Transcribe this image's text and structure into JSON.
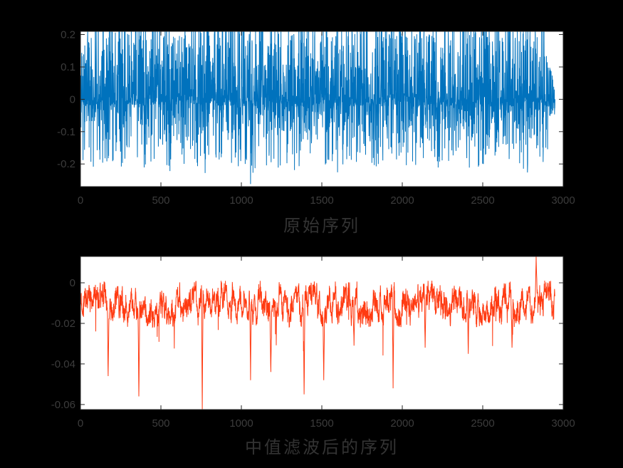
{
  "figure": {
    "background": "#000000",
    "plot_background": "#ffffff",
    "axis_color": "#262626",
    "tick_label_color": "#3c3c3c",
    "title_color": "#333333"
  },
  "chart_data": [
    {
      "type": "line",
      "name": "original-sequence",
      "title": "原始序列",
      "line_color": "#0072BD",
      "x_tick_labels": [
        "0",
        "500",
        "1000",
        "1500",
        "2000",
        "2500",
        "3000"
      ],
      "y_tick_labels": [
        "0.2",
        "0.1",
        "0",
        "-0.1",
        "-0.2"
      ],
      "xlim": [
        0,
        3000
      ],
      "ylim": [
        -0.27,
        0.21
      ],
      "n_points": 2950,
      "legend": "none",
      "grid": "off",
      "signal": {
        "kind": "noisy-audio-waveform",
        "seed": 1337,
        "bias": -0.006,
        "pos_peak": 0.275,
        "neg_peak": 0.21,
        "jitter": 0.03,
        "clip": [
          -0.268,
          0.2095
        ],
        "taper_start": 2880,
        "spikes": [
          {
            "x": 1057,
            "y": -0.262
          }
        ]
      }
    },
    {
      "type": "line",
      "name": "median-filtered-sequence",
      "title": "中值滤波后的序列",
      "line_color": "#FF3B12",
      "x_tick_labels": [
        "0",
        "500",
        "1000",
        "1500",
        "2000",
        "2500",
        "3000"
      ],
      "y_tick_labels": [
        "0",
        "-0.02",
        "-0.04",
        "-0.06"
      ],
      "xlim": [
        0,
        3000
      ],
      "ylim": [
        -0.0625,
        0.013
      ],
      "n_points": 2950,
      "legend": "none",
      "grid": "off",
      "signal": {
        "kind": "median-filtered-waveform",
        "seed": 2024,
        "baseline": -0.0105,
        "wander": 0.0075,
        "jitter": 0.0068,
        "small_spike_prob": 0.012,
        "small_spike_depth": 0.021,
        "clip": [
          -0.0623,
          0.0129
        ],
        "spikes": [
          {
            "x": 172,
            "y": -0.046
          },
          {
            "x": 363,
            "y": -0.056
          },
          {
            "x": 757,
            "y": -0.0625
          },
          {
            "x": 1057,
            "y": -0.048
          },
          {
            "x": 1183,
            "y": -0.044
          },
          {
            "x": 1390,
            "y": -0.055
          },
          {
            "x": 1512,
            "y": -0.048
          },
          {
            "x": 1700,
            "y": -0.031
          },
          {
            "x": 1943,
            "y": -0.052
          },
          {
            "x": 2142,
            "y": -0.032
          },
          {
            "x": 2410,
            "y": -0.035
          },
          {
            "x": 2682,
            "y": -0.032
          },
          {
            "x": 2832,
            "y": 0.013
          },
          {
            "x": 2946,
            "y": -0.003
          }
        ]
      }
    }
  ]
}
